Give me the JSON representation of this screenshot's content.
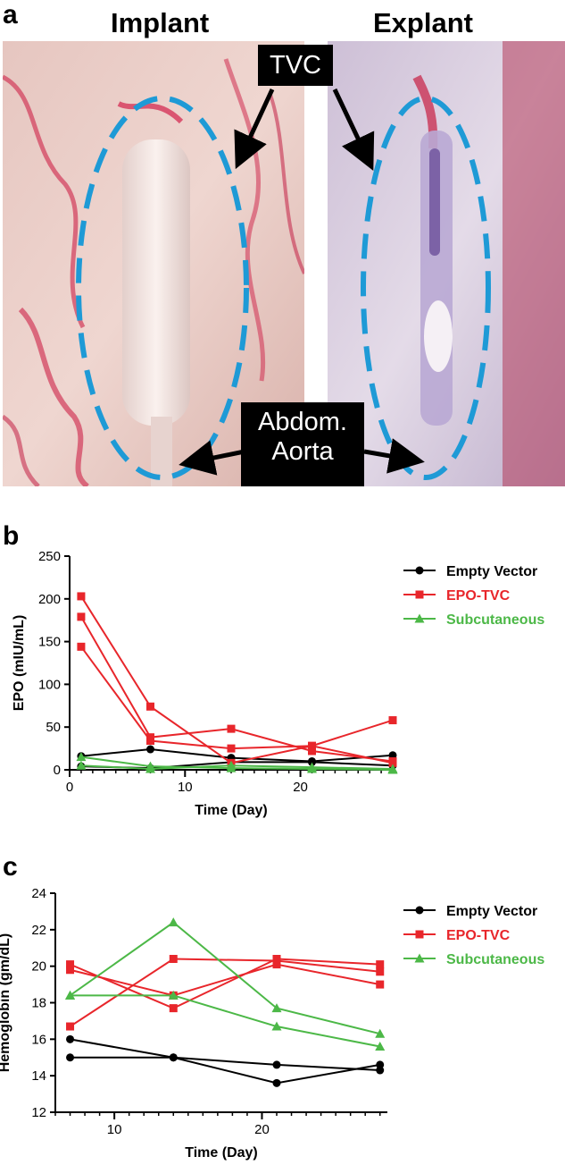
{
  "panels": {
    "a": {
      "letter": "a",
      "left_title": "Implant",
      "right_title": "Explant",
      "callout_top": "TVC",
      "callout_bottom_line1": "Abdom.",
      "callout_bottom_line2": "Aorta",
      "colors": {
        "ellipse": "#1e9ad6",
        "tissue": "#e8c9c4",
        "vessel": "#d6365a"
      }
    },
    "b": {
      "letter": "b"
    },
    "c": {
      "letter": "c"
    }
  },
  "chart_data": [
    {
      "type": "line",
      "panel": "b",
      "xlabel": "Time (Day)",
      "ylabel": "EPO (mIU/mL)",
      "xlim": [
        0,
        28
      ],
      "ylim": [
        0,
        250
      ],
      "xticks": [
        0,
        10,
        20
      ],
      "yticks": [
        0,
        50,
        100,
        150,
        200,
        250
      ],
      "legend_position": "right",
      "legend": [
        {
          "name": "Empty Vector",
          "color": "#000000",
          "marker": "circle"
        },
        {
          "name": "EPO-TVC",
          "color": "#e8262b",
          "marker": "square"
        },
        {
          "name": "Subcutaneous",
          "color": "#4cb847",
          "marker": "triangle"
        }
      ],
      "series": [
        {
          "group": "Empty Vector",
          "color": "#000000",
          "marker": "circle",
          "x": [
            1,
            7,
            14,
            21,
            28
          ],
          "y": [
            16,
            24,
            14,
            10,
            17
          ]
        },
        {
          "group": "Empty Vector",
          "color": "#000000",
          "marker": "circle",
          "x": [
            1,
            7,
            14,
            21,
            28
          ],
          "y": [
            4,
            2,
            9,
            9,
            5
          ]
        },
        {
          "group": "EPO-TVC",
          "color": "#e8262b",
          "marker": "square",
          "x": [
            1,
            7,
            14,
            21,
            28
          ],
          "y": [
            203,
            74,
            8,
            28,
            58
          ]
        },
        {
          "group": "EPO-TVC",
          "color": "#e8262b",
          "marker": "square",
          "x": [
            1,
            7,
            14,
            21,
            28
          ],
          "y": [
            179,
            38,
            48,
            22,
            10
          ]
        },
        {
          "group": "EPO-TVC",
          "color": "#e8262b",
          "marker": "square",
          "x": [
            1,
            7,
            14,
            21,
            28
          ],
          "y": [
            144,
            34,
            25,
            28,
            8
          ]
        },
        {
          "group": "Subcutaneous",
          "color": "#4cb847",
          "marker": "triangle",
          "x": [
            1,
            7,
            14,
            21,
            28
          ],
          "y": [
            15,
            4,
            2,
            1,
            0
          ]
        },
        {
          "group": "Subcutaneous",
          "color": "#4cb847",
          "marker": "triangle",
          "x": [
            1,
            7,
            14,
            21,
            28
          ],
          "y": [
            5,
            1,
            5,
            3,
            1
          ]
        }
      ]
    },
    {
      "type": "line",
      "panel": "c",
      "xlabel": "Time (Day)",
      "ylabel": "Hemoglobin (gm/dL)",
      "xlim": [
        6,
        28.5
      ],
      "ylim": [
        12,
        24
      ],
      "xticks": [
        10,
        20
      ],
      "yticks": [
        12,
        14,
        16,
        18,
        20,
        22,
        24
      ],
      "legend_position": "right",
      "legend": [
        {
          "name": "Empty Vector",
          "color": "#000000",
          "marker": "circle"
        },
        {
          "name": "EPO-TVC",
          "color": "#e8262b",
          "marker": "square"
        },
        {
          "name": "Subcutaneous",
          "color": "#4cb847",
          "marker": "triangle"
        }
      ],
      "series": [
        {
          "group": "Empty Vector",
          "color": "#000000",
          "marker": "circle",
          "x": [
            7,
            14,
            21,
            28
          ],
          "y": [
            16.0,
            15.0,
            14.6,
            14.3
          ]
        },
        {
          "group": "Empty Vector",
          "color": "#000000",
          "marker": "circle",
          "x": [
            7,
            14,
            21,
            28
          ],
          "y": [
            15.0,
            15.0,
            13.6,
            14.6
          ]
        },
        {
          "group": "EPO-TVC",
          "color": "#e8262b",
          "marker": "square",
          "x": [
            7,
            14,
            21,
            28
          ],
          "y": [
            20.1,
            17.7,
            20.4,
            20.1
          ]
        },
        {
          "group": "EPO-TVC",
          "color": "#e8262b",
          "marker": "square",
          "x": [
            7,
            14,
            21,
            28
          ],
          "y": [
            19.8,
            18.4,
            20.1,
            19.0
          ]
        },
        {
          "group": "EPO-TVC",
          "color": "#e8262b",
          "marker": "square",
          "x": [
            7,
            14,
            21,
            28
          ],
          "y": [
            16.7,
            20.4,
            20.3,
            19.7
          ]
        },
        {
          "group": "Subcutaneous",
          "color": "#4cb847",
          "marker": "triangle",
          "x": [
            7,
            14,
            21,
            28
          ],
          "y": [
            18.4,
            22.4,
            17.7,
            16.3
          ]
        },
        {
          "group": "Subcutaneous",
          "color": "#4cb847",
          "marker": "triangle",
          "x": [
            7,
            14,
            21,
            28
          ],
          "y": [
            18.4,
            18.4,
            16.7,
            15.6
          ]
        }
      ]
    }
  ]
}
